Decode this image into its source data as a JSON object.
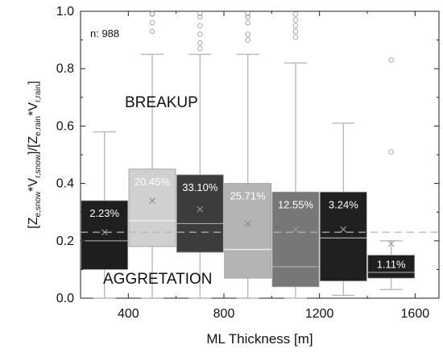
{
  "chart_data": {
    "type": "box",
    "title": "",
    "xlabel": "ML Thickness [m]",
    "ylabel": {
      "lhs_main": "[Z",
      "lhs_sub1": "e,snow",
      "lhs_mid": "*V",
      "lhs_sub2": "r,snow",
      "rhs_main": "]/[Z",
      "rhs_sub1": "e,rain",
      "rhs_mid": "*V",
      "rhs_sub2": "r,rain",
      "end": "]"
    },
    "xlim": [
      200,
      1700
    ],
    "ylim": [
      0,
      1.0
    ],
    "x_ticks": [
      "400",
      "800",
      "1200",
      "1600"
    ],
    "x_tick_values": [
      400,
      800,
      1200,
      1600
    ],
    "y_ticks": [
      "0.0",
      "0.2",
      "0.4",
      "0.6",
      "0.8",
      "1.0"
    ],
    "y_tick_values": [
      0.0,
      0.2,
      0.4,
      0.6,
      0.8,
      1.0
    ],
    "reference_line": 0.23,
    "sample_size_label": "n: 988",
    "annotations": {
      "upper": "BREAKUP",
      "lower": "AGGRETATION"
    },
    "boxes": [
      {
        "center": 300,
        "q1": 0.1,
        "median": 0.2,
        "q3": 0.34,
        "whisker_low": 0.0,
        "whisker_high": 0.58,
        "mean": 0.23,
        "percent": "2.23%",
        "fill": "#1f1f1f",
        "outliers": []
      },
      {
        "center": 500,
        "q1": 0.18,
        "median": 0.27,
        "q3": 0.45,
        "whisker_low": 0.0,
        "whisker_high": 0.85,
        "mean": 0.34,
        "percent": "20.45%",
        "fill": "#d0d0d0",
        "outliers": [
          0.93,
          0.96,
          0.99,
          1.0,
          1.0
        ]
      },
      {
        "center": 700,
        "q1": 0.16,
        "median": 0.26,
        "q3": 0.43,
        "whisker_low": 0.0,
        "whisker_high": 0.85,
        "mean": 0.31,
        "percent": "33.10%",
        "fill": "#3c3c3c",
        "outliers": [
          0.87,
          0.89,
          0.92,
          0.95,
          0.98,
          1.0
        ]
      },
      {
        "center": 900,
        "q1": 0.07,
        "median": 0.17,
        "q3": 0.4,
        "whisker_low": 0.0,
        "whisker_high": 0.85,
        "mean": 0.26,
        "percent": "25.71%",
        "fill": "#b4b4b4",
        "outliers": [
          0.9,
          0.92,
          0.96,
          0.98,
          1.0
        ]
      },
      {
        "center": 1100,
        "q1": 0.04,
        "median": 0.11,
        "q3": 0.37,
        "whisker_low": 0.0,
        "whisker_high": 0.82,
        "mean": 0.24,
        "percent": "12.55%",
        "fill": "#777777",
        "outliers": [
          0.91,
          0.93,
          0.95,
          0.97,
          0.99
        ]
      },
      {
        "center": 1300,
        "q1": 0.06,
        "median": 0.21,
        "q3": 0.37,
        "whisker_low": 0.01,
        "whisker_high": 0.61,
        "mean": 0.24,
        "percent": "3.24%",
        "fill": "#202020",
        "outliers": []
      },
      {
        "center": 1500,
        "q1": 0.07,
        "median": 0.09,
        "q3": 0.15,
        "whisker_low": 0.03,
        "whisker_high": 0.2,
        "mean": 0.19,
        "percent": "1.11%",
        "fill": "#1f1f1f",
        "outliers": [
          0.51,
          0.83
        ]
      }
    ]
  }
}
